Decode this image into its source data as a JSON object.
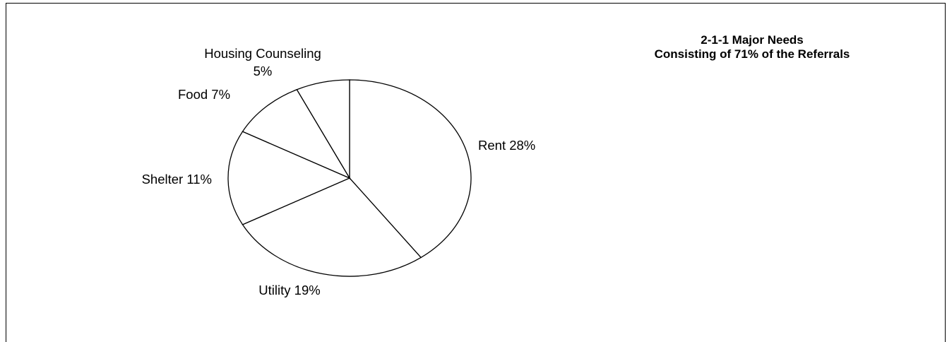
{
  "chart_data": {
    "type": "pie",
    "title": [
      "2-1-1 Major Needs",
      "Consisting of 71% of the Referrals"
    ],
    "categories": [
      "Rent",
      "Utility",
      "Shelter",
      "Food",
      "Housing Counseling"
    ],
    "values": [
      28,
      19,
      11,
      7,
      5
    ],
    "labels": [
      [
        "Rent 28%"
      ],
      [
        "Utility 19%"
      ],
      [
        "Shelter 11%"
      ],
      [
        "Food 7%"
      ],
      [
        "Housing Counseling",
        "5%"
      ]
    ],
    "start_angle_deg": 90,
    "direction": "clockwise",
    "colors": {
      "fill": "#ffffff",
      "stroke": "#000000"
    }
  }
}
